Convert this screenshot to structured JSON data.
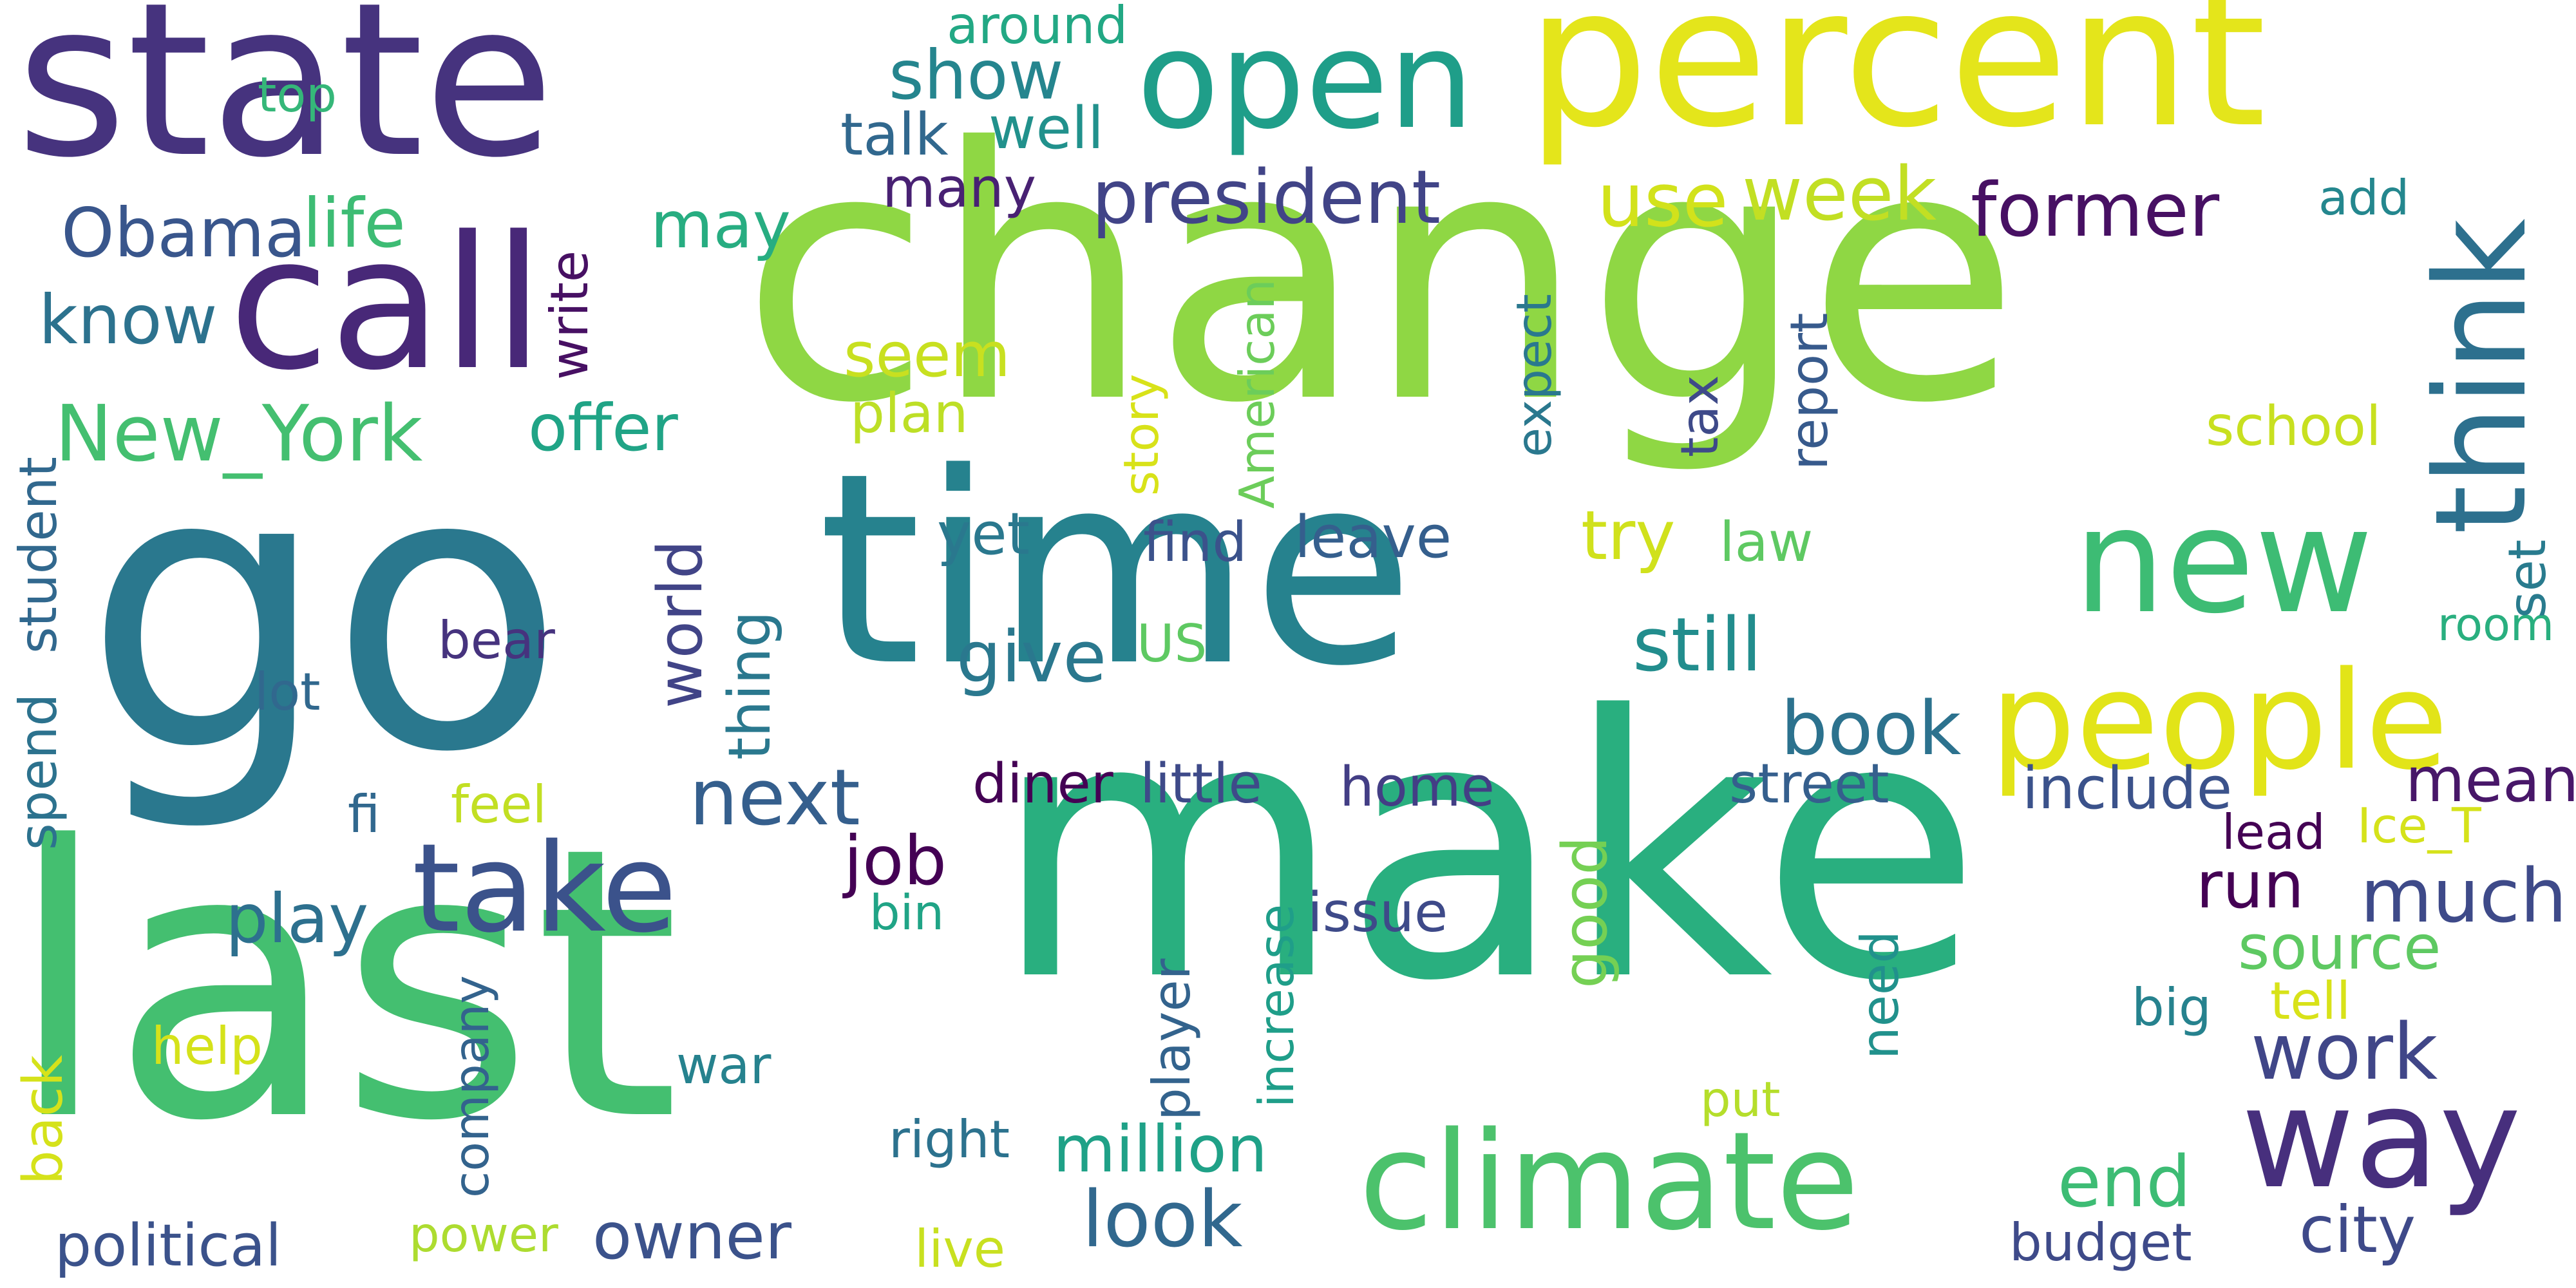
{
  "words": [
    {
      "text": "change",
      "color": "#8fd744"
    },
    {
      "text": "make",
      "color": "#29af7f"
    },
    {
      "text": "go",
      "color": "#2a788e"
    },
    {
      "text": "last",
      "color": "#44bf70"
    },
    {
      "text": "time",
      "color": "#26828e"
    },
    {
      "text": "state",
      "color": "#46337e"
    },
    {
      "text": "percent",
      "color": "#e4e51b"
    },
    {
      "text": "call",
      "color": "#482878"
    },
    {
      "text": "open",
      "color": "#1f9e89"
    },
    {
      "text": "new",
      "color": "#3dbc74"
    },
    {
      "text": "people",
      "color": "#e2e418"
    },
    {
      "text": "climate",
      "color": "#4cc26c"
    },
    {
      "text": "way",
      "color": "#472f7d"
    },
    {
      "text": "take",
      "color": "#3b528b"
    },
    {
      "text": "think",
      "color": "#2d708e"
    },
    {
      "text": "New_York",
      "color": "#44bf70"
    },
    {
      "text": "president",
      "color": "#414487"
    },
    {
      "text": "former",
      "color": "#471063"
    },
    {
      "text": "use",
      "color": "#d2e21b"
    },
    {
      "text": "week",
      "color": "#c2df23"
    },
    {
      "text": "book",
      "color": "#2c728e"
    },
    {
      "text": "still",
      "color": "#228d8d"
    },
    {
      "text": "next",
      "color": "#355f8d"
    },
    {
      "text": "give",
      "color": "#2a788e"
    },
    {
      "text": "look",
      "color": "#31688e"
    },
    {
      "text": "work",
      "color": "#404688"
    },
    {
      "text": "much",
      "color": "#3e4a89"
    },
    {
      "text": "million",
      "color": "#1fa187"
    },
    {
      "text": "owner",
      "color": "#3b528b"
    },
    {
      "text": "city",
      "color": "#3e4989"
    },
    {
      "text": "end",
      "color": "#3dbc74"
    },
    {
      "text": "run",
      "color": "#440154"
    },
    {
      "text": "mean",
      "color": "#481769"
    },
    {
      "text": "source",
      "color": "#5ec962"
    },
    {
      "text": "political",
      "color": "#3b528b"
    },
    {
      "text": "know",
      "color": "#2c728e"
    },
    {
      "text": "Obama",
      "color": "#39568c"
    },
    {
      "text": "life",
      "color": "#3dbc74"
    },
    {
      "text": "may",
      "color": "#27ad81"
    },
    {
      "text": "show",
      "color": "#25858e"
    },
    {
      "text": "offer",
      "color": "#20a486"
    },
    {
      "text": "seem",
      "color": "#c8e020"
    },
    {
      "text": "try",
      "color": "#d0e11c"
    },
    {
      "text": "world",
      "color": "#414487"
    },
    {
      "text": "thing",
      "color": "#2a788e"
    },
    {
      "text": "play",
      "color": "#2d708e"
    },
    {
      "text": "good",
      "color": "#75d054"
    },
    {
      "text": "job",
      "color": "#440154"
    },
    {
      "text": "talk",
      "color": "#31688e"
    },
    {
      "text": "well",
      "color": "#21918c"
    },
    {
      "text": "many",
      "color": "#482173"
    },
    {
      "text": "around",
      "color": "#22a884"
    },
    {
      "text": "top",
      "color": "#35b779"
    },
    {
      "text": "plan",
      "color": "#bddf26"
    },
    {
      "text": "story",
      "color": "#d8e219"
    },
    {
      "text": "American",
      "color": "#6ccd5a"
    },
    {
      "text": "expect",
      "color": "#2a788e"
    },
    {
      "text": "tax",
      "color": "#3e4a89"
    },
    {
      "text": "report",
      "color": "#375a8c"
    },
    {
      "text": "school",
      "color": "#c8e020"
    },
    {
      "text": "add",
      "color": "#24878e"
    },
    {
      "text": "set",
      "color": "#297b8e"
    },
    {
      "text": "room",
      "color": "#29af7f"
    },
    {
      "text": "include",
      "color": "#3b528b"
    },
    {
      "text": "lead",
      "color": "#440154"
    },
    {
      "text": "Ice_T",
      "color": "#d5e21a"
    },
    {
      "text": "street",
      "color": "#355f8d"
    },
    {
      "text": "home",
      "color": "#433e85"
    },
    {
      "text": "little",
      "color": "#3e4a89"
    },
    {
      "text": "diner",
      "color": "#440154"
    },
    {
      "text": "find",
      "color": "#3b528b"
    },
    {
      "text": "leave",
      "color": "#355f8d"
    },
    {
      "text": "law",
      "color": "#5ec962"
    },
    {
      "text": "yet",
      "color": "#2a788e"
    },
    {
      "text": "US",
      "color": "#5ec962"
    },
    {
      "text": "bear",
      "color": "#46337e"
    },
    {
      "text": "lot",
      "color": "#31688e"
    },
    {
      "text": "fi",
      "color": "#31688e"
    },
    {
      "text": "feel",
      "color": "#c2df23"
    },
    {
      "text": "bin",
      "color": "#20a486"
    },
    {
      "text": "issue",
      "color": "#3e4a89"
    },
    {
      "text": "increase",
      "color": "#1f9e89"
    },
    {
      "text": "player",
      "color": "#33638d"
    },
    {
      "text": "need",
      "color": "#21918c"
    },
    {
      "text": "big",
      "color": "#26828e"
    },
    {
      "text": "tell",
      "color": "#d8e219"
    },
    {
      "text": "put",
      "color": "#b5de2b"
    },
    {
      "text": "budget",
      "color": "#3e4a89"
    },
    {
      "text": "help",
      "color": "#d5e21a"
    },
    {
      "text": "war",
      "color": "#26828e"
    },
    {
      "text": "company",
      "color": "#33638d"
    },
    {
      "text": "right",
      "color": "#2c728e"
    },
    {
      "text": "power",
      "color": "#addc30"
    },
    {
      "text": "live",
      "color": "#c8e020"
    },
    {
      "text": "back",
      "color": "#d5e21a"
    },
    {
      "text": "student",
      "color": "#31688e"
    },
    {
      "text": "spend",
      "color": "#2c728e"
    },
    {
      "text": "write",
      "color": "#471063"
    }
  ]
}
